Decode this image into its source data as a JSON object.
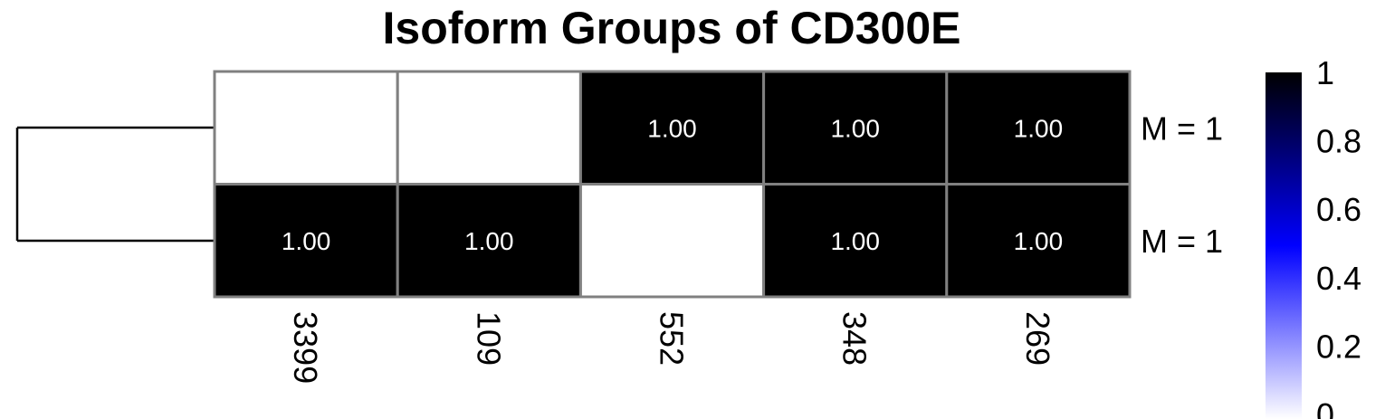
{
  "chart_data": {
    "type": "heatmap",
    "title": "Isoform Groups of CD300E",
    "columns": [
      "3399",
      "109",
      "552",
      "348",
      "269"
    ],
    "rows": [
      "M = 1",
      "M = 1"
    ],
    "values": [
      [
        0,
        0,
        1,
        1,
        1
      ],
      [
        1,
        1,
        0,
        1,
        1
      ]
    ],
    "cell_labels": [
      [
        "",
        "",
        "1.00",
        "1.00",
        "1.00"
      ],
      [
        "1.00",
        "1.00",
        "",
        "1.00",
        "1.00"
      ]
    ],
    "legend": {
      "ticks": [
        "1",
        "0.8",
        "0.6",
        "0.4",
        "0.2",
        "0"
      ],
      "range": [
        0,
        1
      ],
      "low_color": "#ffffff",
      "mid_color": "#0000ff",
      "high_color": "#000000"
    },
    "dendrogram": "rows",
    "grid_color": "#808080"
  }
}
